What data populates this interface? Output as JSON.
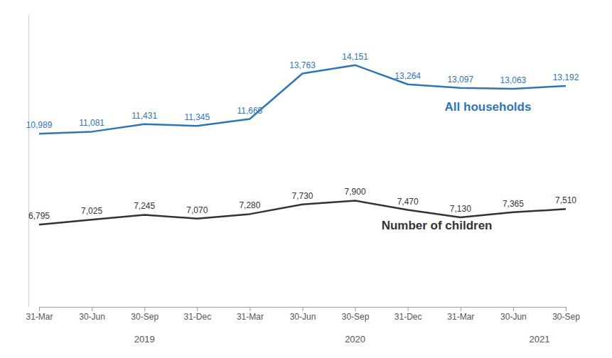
{
  "chart_data": {
    "type": "line",
    "categories": [
      "31-Mar",
      "30-Jun",
      "30-Sep",
      "31-Dec",
      "31-Mar",
      "30-Jun",
      "30-Sep",
      "31-Dec",
      "31-Mar",
      "30-Jun",
      "30-Sep"
    ],
    "series": [
      {
        "name": "All households",
        "color": "#2E75B6",
        "values": [
          10989,
          11081,
          11431,
          11345,
          11665,
          13763,
          14151,
          13264,
          13097,
          13063,
          13192
        ],
        "value_labels": [
          "10,989",
          "11,081",
          "11,431",
          "11,345",
          "11,665",
          "13,763",
          "14,151",
          "13,264",
          "13,097",
          "13,063",
          "13,192"
        ]
      },
      {
        "name": "Number of children",
        "color": "#333333",
        "values": [
          6795,
          7025,
          7245,
          7070,
          7280,
          7730,
          7900,
          7470,
          7130,
          7365,
          7510
        ],
        "value_labels": [
          "6,795",
          "7,025",
          "7,245",
          "7,070",
          "7,280",
          "7,730",
          "7,900",
          "7,470",
          "7,130",
          "7,365",
          "7,510"
        ]
      }
    ],
    "ylim": [
      3000,
      16500
    ],
    "data_labels": true,
    "tick_labels": "x",
    "grid": false,
    "annotations": [
      {
        "text": "2019",
        "x": 2
      },
      {
        "text": "2020",
        "x": 6
      },
      {
        "text": "2021",
        "x": 9.5
      }
    ]
  }
}
